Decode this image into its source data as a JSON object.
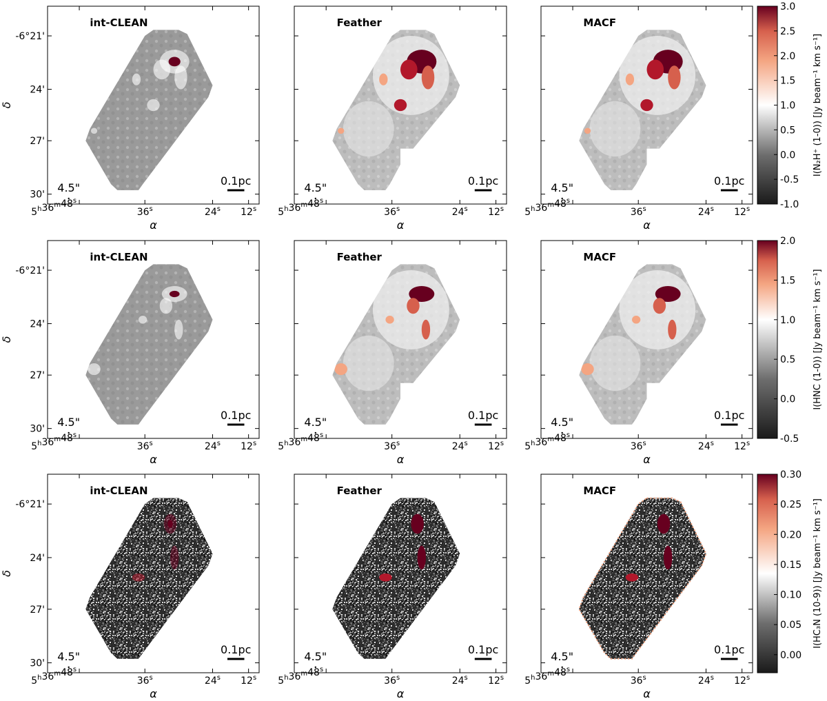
{
  "figure": {
    "ra_ticks": [
      "5h36m48s",
      "36s",
      "24s",
      "12s"
    ],
    "dec_ticks": [
      "-6°21'",
      "24'",
      "27'",
      "30'"
    ],
    "xlabel": "α",
    "ylabel": "δ",
    "beam_label": "4.5\"",
    "scale_label": "0.1pc"
  },
  "rows": [
    {
      "line": "N2H+ (1-0)",
      "colorbar_label": "I(N₂H⁺ (1-0)) [Jy beam⁻¹ km s⁻¹]",
      "colorbar_ticks": [
        "3.0",
        "2.5",
        "2.0",
        "1.5",
        "1.0",
        "0.5",
        "0.0",
        "-0.5",
        "-1.0"
      ],
      "vmin": -1.0,
      "vmax": 3.0,
      "panels": [
        {
          "method": "int-CLEAN",
          "mode": "smooth"
        },
        {
          "method": "Feather",
          "mode": "smooth"
        },
        {
          "method": "MACF",
          "mode": "smooth"
        }
      ]
    },
    {
      "line": "HNC (1-0)",
      "colorbar_label": "I(HNC (1-0)) [Jy beam⁻¹ km s⁻¹]",
      "colorbar_ticks": [
        "2.0",
        "1.5",
        "1.0",
        "0.5",
        "0.0",
        "-0.5"
      ],
      "vmin": -0.5,
      "vmax": 2.0,
      "panels": [
        {
          "method": "int-CLEAN",
          "mode": "smooth"
        },
        {
          "method": "Feather",
          "mode": "smooth"
        },
        {
          "method": "MACF",
          "mode": "smooth"
        }
      ]
    },
    {
      "line": "HC3N (10-9)",
      "colorbar_label": "I(HC₃N (10-9)) [Jy beam⁻¹ km s⁻¹]",
      "colorbar_ticks": [
        "0.30",
        "0.25",
        "0.20",
        "0.15",
        "0.10",
        "0.05",
        "0.00"
      ],
      "vmin": -0.03,
      "vmax": 0.3,
      "panels": [
        {
          "method": "int-CLEAN",
          "mode": "noisy"
        },
        {
          "method": "Feather",
          "mode": "noisy"
        },
        {
          "method": "MACF",
          "mode": "noisy"
        }
      ]
    }
  ],
  "chart_data": {
    "type": "heatmap",
    "layout": "3 rows (molecular lines) × 3 columns (imaging methods)",
    "methods": [
      "int-CLEAN",
      "Feather",
      "MACF"
    ],
    "lines": [
      "N2H+ (1-0)",
      "HNC (1-0)",
      "HC3N (10-9)"
    ],
    "units": "Jy beam^-1 km s^-1",
    "colormap": "diverging: dark gray (low) → white → dark red (high)",
    "colors": {
      "low": "#1a1a1a",
      "mid": "#ffffff",
      "high": "#67001f"
    },
    "color_ranges": [
      [
        -1.0,
        3.0
      ],
      [
        -0.5,
        2.0
      ],
      [
        -0.03,
        0.3
      ]
    ]
  }
}
